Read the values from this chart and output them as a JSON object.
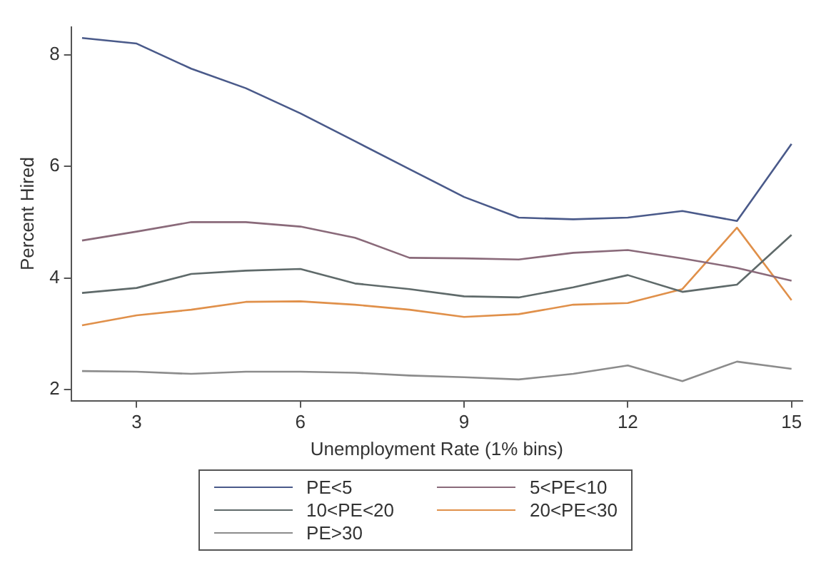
{
  "chart_data": {
    "type": "line",
    "xlabel": "Unemployment Rate (1% bins)",
    "ylabel": "Percent Hired",
    "x": [
      2,
      3,
      4,
      5,
      6,
      7,
      8,
      9,
      10,
      11,
      12,
      13,
      14,
      15
    ],
    "series": [
      {
        "name": "PE<5",
        "color": "#4a5a8a",
        "values": [
          8.3,
          8.2,
          7.75,
          7.4,
          6.95,
          6.45,
          5.95,
          5.45,
          5.08,
          5.05,
          5.08,
          5.2,
          5.02,
          6.4
        ]
      },
      {
        "name": "5<PE<10",
        "color": "#8a6a7a",
        "values": [
          4.67,
          4.83,
          5.0,
          5.0,
          4.92,
          4.72,
          4.36,
          4.35,
          4.33,
          4.45,
          4.5,
          4.35,
          4.18,
          3.95
        ]
      },
      {
        "name": "10<PE<20",
        "color": "#5f6a6a",
        "values": [
          3.73,
          3.82,
          4.07,
          4.13,
          4.16,
          3.9,
          3.8,
          3.67,
          3.65,
          3.83,
          4.05,
          3.75,
          3.88,
          4.77
        ]
      },
      {
        "name": "20<PE<30",
        "color": "#e0904a",
        "values": [
          3.15,
          3.33,
          3.43,
          3.57,
          3.58,
          3.52,
          3.43,
          3.3,
          3.35,
          3.52,
          3.55,
          3.8,
          4.9,
          3.6
        ]
      },
      {
        "name": "PE>30",
        "color": "#8c8c8c",
        "values": [
          2.33,
          2.32,
          2.28,
          2.32,
          2.32,
          2.3,
          2.25,
          2.22,
          2.18,
          2.28,
          2.43,
          2.15,
          2.5,
          2.37
        ]
      }
    ],
    "xlim": [
      1.8,
      15.2
    ],
    "xticks": [
      3,
      6,
      9,
      12,
      15
    ],
    "ylim": [
      1.8,
      8.5
    ],
    "yticks": [
      2,
      4,
      6,
      8
    ],
    "grid": false,
    "legend": "bottom",
    "marker": "none",
    "line_style": "solid"
  }
}
